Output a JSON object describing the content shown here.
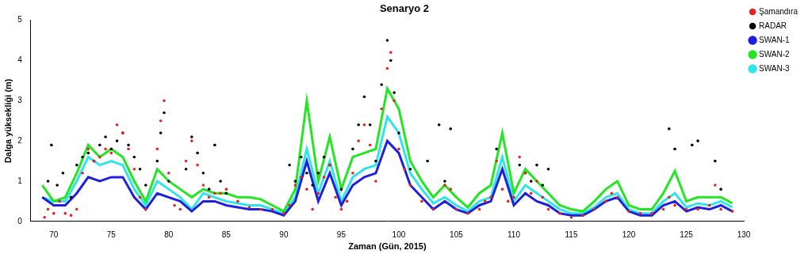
{
  "chart_data": {
    "type": "scatter",
    "title": "Senaryo 2",
    "x_label": "Zaman (Gün, 2015)",
    "y_label": "Dalga yüksekliği (m)",
    "xlim": [
      68,
      130
    ],
    "xticks": [
      70,
      75,
      80,
      85,
      90,
      95,
      100,
      105,
      110,
      115,
      120,
      125,
      130
    ],
    "ylim": [
      0,
      5
    ],
    "yticks": [
      0,
      1,
      2,
      3,
      4,
      5
    ],
    "grid": false,
    "legend": "upper right",
    "series": [
      {
        "name": "Şamandıra",
        "color": "#e8231f",
        "type": "scatter",
        "marker": "circle",
        "x": [
          69.2,
          69.5,
          70,
          70.5,
          71,
          71.5,
          72,
          72.5,
          73,
          73.5,
          74,
          74.5,
          75,
          75.5,
          76,
          76.5,
          77,
          77.5,
          78,
          79,
          79.3,
          79.6,
          80,
          80.5,
          81,
          81.5,
          82,
          82.5,
          83,
          83.5,
          84,
          84.5,
          85,
          86,
          87,
          88,
          89,
          90,
          90.5,
          91,
          91.5,
          92,
          92.5,
          93,
          93.5,
          94,
          94.5,
          95,
          95.5,
          96,
          96.5,
          97,
          97.5,
          98,
          98.5,
          99,
          99.3,
          99.6,
          100,
          100.5,
          101,
          102,
          103,
          104,
          104.5,
          105,
          106,
          107,
          107.5,
          108,
          108.5,
          109,
          109.5,
          110,
          110.5,
          111,
          111.5,
          112,
          112.5,
          113,
          114,
          115,
          116,
          117,
          118,
          118.5,
          119,
          120,
          121,
          122,
          123,
          123.5,
          124,
          125,
          126,
          127,
          127.5,
          128,
          129
        ],
        "values": [
          0.1,
          0.3,
          0.2,
          0.5,
          0.2,
          0.15,
          0.3,
          1.2,
          1.8,
          1.5,
          1.6,
          1.8,
          1.7,
          2.4,
          2.2,
          1.8,
          1.3,
          0.6,
          0.3,
          1.8,
          2.5,
          3.0,
          1.2,
          0.4,
          0.3,
          1.5,
          2.0,
          1.4,
          0.9,
          0.6,
          0.7,
          0.7,
          0.8,
          0.5,
          0.35,
          0.3,
          0.3,
          0.2,
          0.4,
          0.9,
          1.1,
          0.8,
          0.3,
          0.7,
          1.1,
          1.4,
          0.6,
          0.3,
          0.5,
          1.2,
          2.0,
          2.4,
          1.9,
          1.0,
          2.8,
          3.8,
          4.2,
          3.0,
          1.8,
          1.3,
          0.9,
          0.5,
          0.3,
          0.9,
          0.8,
          0.3,
          0.2,
          0.3,
          0.5,
          0.6,
          1.5,
          0.8,
          0.5,
          0.6,
          1.6,
          1.2,
          0.7,
          1.0,
          0.6,
          0.3,
          0.2,
          0.1,
          0.15,
          0.3,
          0.5,
          0.7,
          0.6,
          0.25,
          0.2,
          0.2,
          0.3,
          0.6,
          0.4,
          0.3,
          0.3,
          0.4,
          0.9,
          0.3,
          0.25
        ]
      },
      {
        "name": "RADAR",
        "color": "#000000",
        "type": "scatter",
        "marker": "circle",
        "x": [
          69.5,
          69.8,
          70.3,
          70.8,
          71.5,
          72,
          72.5,
          73,
          73.5,
          74,
          74.5,
          75,
          75.5,
          76,
          76.5,
          77,
          77.5,
          78,
          79,
          79.3,
          79.6,
          80,
          81.5,
          82,
          82.5,
          83,
          83.5,
          84,
          84.5,
          85,
          90.5,
          91,
          91.5,
          92,
          92.5,
          93,
          93.5,
          94,
          95,
          96,
          96.5,
          97,
          97.5,
          98,
          98.5,
          99,
          99.3,
          99.6,
          100,
          101,
          102.5,
          103.5,
          104,
          104.5,
          108.5,
          110.5,
          111,
          111.5,
          112,
          112.5,
          113,
          123.5,
          124,
          125.5,
          126,
          127.5,
          128
        ],
        "values": [
          1.0,
          1.9,
          0.9,
          1.2,
          0.6,
          1.4,
          1.6,
          1.7,
          1.5,
          1.9,
          2.1,
          1.8,
          2.0,
          2.2,
          1.9,
          1.6,
          1.3,
          0.9,
          1.5,
          2.2,
          2.7,
          1.0,
          1.3,
          2.1,
          1.7,
          1.2,
          0.8,
          1.9,
          1.0,
          0.7,
          1.4,
          1.0,
          1.6,
          1.2,
          0.9,
          1.2,
          1.6,
          1.4,
          0.8,
          1.8,
          2.4,
          3.1,
          2.4,
          1.5,
          3.4,
          4.5,
          4.0,
          3.2,
          2.2,
          1.3,
          1.5,
          2.4,
          1.0,
          2.3,
          1.8,
          1.4,
          1.2,
          1.0,
          1.4,
          0.9,
          1.3,
          2.3,
          1.8,
          1.9,
          2.0,
          1.5,
          0.8
        ]
      },
      {
        "name": "SWAN-1",
        "color": "#1f1fe0",
        "type": "line",
        "line_style": "solid",
        "x": [
          69,
          70,
          71,
          72,
          73,
          74,
          75,
          76,
          77,
          78,
          79,
          80,
          81,
          82,
          83,
          84,
          85,
          86,
          87,
          88,
          89,
          90,
          91,
          92,
          93,
          94,
          95,
          96,
          97,
          98,
          99,
          100,
          101,
          102,
          103,
          104,
          105,
          106,
          107,
          108,
          109,
          110,
          111,
          112,
          113,
          114,
          115,
          116,
          117,
          118,
          119,
          120,
          121,
          122,
          123,
          124,
          125,
          126,
          127,
          128,
          129
        ],
        "values": [
          0.6,
          0.4,
          0.4,
          0.7,
          1.1,
          1.0,
          1.1,
          1.1,
          0.6,
          0.3,
          0.7,
          0.6,
          0.5,
          0.25,
          0.5,
          0.5,
          0.4,
          0.35,
          0.3,
          0.3,
          0.25,
          0.15,
          0.5,
          1.5,
          0.5,
          1.2,
          0.4,
          0.9,
          1.1,
          1.2,
          2.0,
          1.7,
          0.9,
          0.6,
          0.3,
          0.5,
          0.3,
          0.2,
          0.4,
          0.5,
          1.3,
          0.4,
          0.7,
          0.5,
          0.4,
          0.2,
          0.15,
          0.15,
          0.3,
          0.5,
          0.6,
          0.25,
          0.15,
          0.15,
          0.4,
          0.5,
          0.25,
          0.35,
          0.3,
          0.4,
          0.25
        ]
      },
      {
        "name": "SWAN-2",
        "color": "#22e622",
        "type": "line",
        "line_style": "solid",
        "x": [
          69,
          70,
          71,
          72,
          73,
          74,
          75,
          76,
          77,
          78,
          79,
          80,
          81,
          82,
          83,
          84,
          85,
          86,
          87,
          88,
          89,
          90,
          91,
          92,
          93,
          94,
          95,
          96,
          97,
          98,
          99,
          100,
          101,
          102,
          103,
          104,
          105,
          106,
          107,
          108,
          109,
          110,
          111,
          112,
          113,
          114,
          115,
          116,
          117,
          118,
          119,
          120,
          121,
          122,
          123,
          124,
          125,
          126,
          127,
          128,
          129
        ],
        "values": [
          0.9,
          0.5,
          0.6,
          1.2,
          1.9,
          1.6,
          1.8,
          1.6,
          1.0,
          0.5,
          1.3,
          1.0,
          0.8,
          0.6,
          0.8,
          0.7,
          0.7,
          0.6,
          0.6,
          0.55,
          0.4,
          0.25,
          0.8,
          3.0,
          1.0,
          2.1,
          0.8,
          1.6,
          1.7,
          1.8,
          3.3,
          2.8,
          1.5,
          1.0,
          0.6,
          0.9,
          0.6,
          0.35,
          0.7,
          0.9,
          2.2,
          0.7,
          1.3,
          1.0,
          0.7,
          0.4,
          0.3,
          0.25,
          0.5,
          0.8,
          1.0,
          0.4,
          0.3,
          0.3,
          0.7,
          1.25,
          0.5,
          0.6,
          0.6,
          0.6,
          0.45
        ]
      },
      {
        "name": "SWAN-3",
        "color": "#2ee6e6",
        "type": "line",
        "line_style": "solid",
        "x": [
          69,
          70,
          71,
          72,
          73,
          74,
          75,
          76,
          77,
          78,
          79,
          80,
          81,
          82,
          83,
          84,
          85,
          86,
          87,
          88,
          89,
          90,
          91,
          92,
          93,
          94,
          95,
          96,
          97,
          98,
          99,
          100,
          101,
          102,
          103,
          104,
          105,
          106,
          107,
          108,
          109,
          110,
          111,
          112,
          113,
          114,
          115,
          116,
          117,
          118,
          119,
          120,
          121,
          122,
          123,
          124,
          125,
          126,
          127,
          128,
          129
        ],
        "values": [
          0.6,
          0.5,
          0.5,
          1.0,
          1.6,
          1.4,
          1.5,
          1.4,
          0.8,
          0.4,
          1.0,
          0.8,
          0.6,
          0.3,
          0.7,
          0.6,
          0.5,
          0.45,
          0.4,
          0.4,
          0.3,
          0.2,
          0.6,
          1.8,
          0.7,
          1.5,
          0.5,
          1.1,
          1.3,
          1.4,
          2.6,
          2.2,
          1.2,
          0.8,
          0.45,
          0.6,
          0.4,
          0.25,
          0.5,
          0.6,
          1.6,
          0.5,
          0.9,
          0.7,
          0.5,
          0.3,
          0.2,
          0.2,
          0.35,
          0.6,
          0.7,
          0.3,
          0.2,
          0.2,
          0.5,
          0.7,
          0.35,
          0.45,
          0.4,
          0.5,
          0.35
        ]
      }
    ]
  }
}
